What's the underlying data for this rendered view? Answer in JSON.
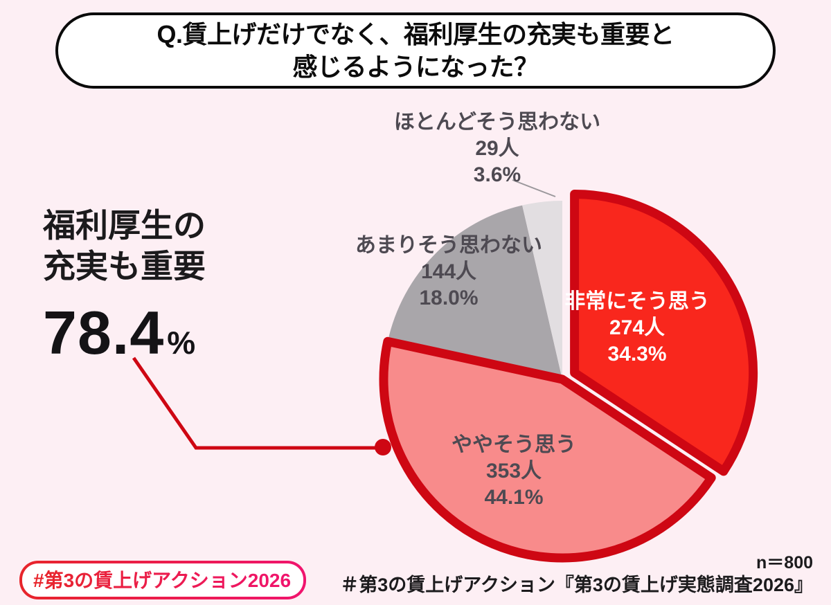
{
  "page": {
    "background": "#fdeff4"
  },
  "question": {
    "line1": "Q.賃上げだけでなく、福利厚生の充実も重要と",
    "line2": "感じるようになった？"
  },
  "headline": {
    "line1": "福利厚生の",
    "line2": "充実も重要",
    "value": "78.4",
    "unit": "%"
  },
  "footer": {
    "badge": "#第3の賃上げアクション2026",
    "sample": "n＝800",
    "source": "＃第3の賃上げアクション『第3の賃上げ実態調査2026』"
  },
  "chart_data": {
    "type": "pie",
    "title": "賃上げだけでなく、福利厚生の充実も重要と感じるようになった？",
    "n": 800,
    "start_angle_deg": 0,
    "direction": "clockwise",
    "outline_color": "#ce0713",
    "background": "#fdeff4",
    "highlight_total_percent": 78.4,
    "highlight_label": "福利厚生の充実も重要",
    "slices": [
      {
        "label": "非常にそう思う",
        "count": 274,
        "count_label": "274人",
        "percent": 34.3,
        "percent_label": "34.3%",
        "color": "#f9271d",
        "text_color": "#ffffff",
        "outlined": true,
        "exploded": true
      },
      {
        "label": "ややそう思う",
        "count": 353,
        "count_label": "353人",
        "percent": 44.1,
        "percent_label": "44.1%",
        "color": "#f88b8b",
        "text_color": "#4e4a52",
        "outlined": true,
        "exploded": false
      },
      {
        "label": "あまりそう思わない",
        "count": 144,
        "count_label": "144人",
        "percent": 18.0,
        "percent_label": "18.0%",
        "color": "#a9a6aa",
        "text_color": "#4e4a52",
        "outlined": false,
        "exploded": false
      },
      {
        "label": "ほとんどそう思わない",
        "count": 29,
        "count_label": "29人",
        "percent": 3.6,
        "percent_label": "3.6%",
        "color": "#e2dee1",
        "text_color": "#4e4a52",
        "outlined": false,
        "exploded": false
      }
    ]
  }
}
